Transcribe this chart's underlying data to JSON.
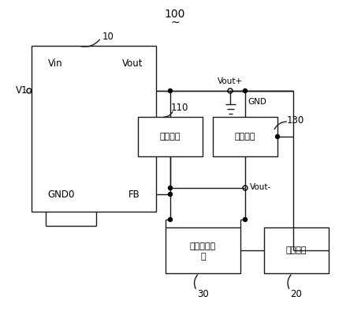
{
  "bg_color": "#ffffff",
  "line_color": "#1a1a1a",
  "label_100": "100",
  "label_tilde": "~",
  "label_10": "10",
  "label_110": "110",
  "label_130": "130",
  "label_20": "20",
  "label_30": "30",
  "label_V1": "V1",
  "label_Vin": "Vin",
  "label_Vout": "Vout",
  "label_GND0": "GND0",
  "label_FB": "FB",
  "label_Vout_plus": "Vout+",
  "label_GND": "GND",
  "label_Vout_minus": "Vout-",
  "label_feedback_branch": "反馈支路",
  "label_sample_circuit": "采样电路",
  "label_feedback_adjust_1": "反馈调节电",
  "label_feedback_adjust_2": "路",
  "label_control_circuit": "控制电路"
}
